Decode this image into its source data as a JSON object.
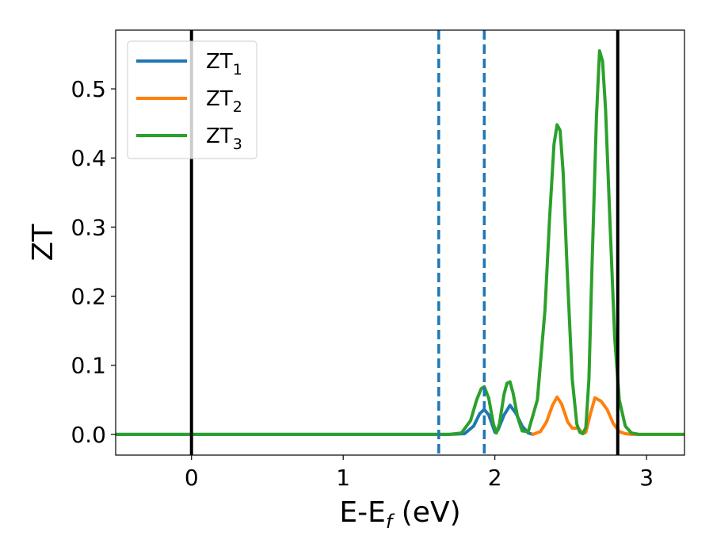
{
  "chart_data": {
    "type": "line",
    "xlabel": {
      "main": "E-E",
      "sub": "f",
      "tail": " (eV)"
    },
    "ylabel": "ZT",
    "xlim": [
      -0.5,
      3.25
    ],
    "ylim": [
      -0.03,
      0.585
    ],
    "x_ticks": [
      0,
      1,
      2,
      3
    ],
    "y_ticks": [
      0.0,
      0.1,
      0.2,
      0.3,
      0.4,
      0.5
    ],
    "x_tick_labels": [
      "0",
      "1",
      "2",
      "3"
    ],
    "y_tick_labels": [
      "0.0",
      "0.1",
      "0.2",
      "0.3",
      "0.4",
      "0.5"
    ],
    "grid": false,
    "legend_position": "top-left",
    "vertical_lines": [
      {
        "x": 0.0,
        "color": "#000000",
        "style": "solid"
      },
      {
        "x": 1.63,
        "color": "#1f77b4",
        "style": "dashed"
      },
      {
        "x": 1.93,
        "color": "#1f77b4",
        "style": "dashed"
      },
      {
        "x": 2.81,
        "color": "#000000",
        "style": "solid"
      }
    ],
    "series": [
      {
        "name": {
          "main": "ZT",
          "sub": "1"
        },
        "color": "#1f77b4",
        "x": [
          -0.5,
          1.7,
          1.8,
          1.86,
          1.9,
          1.93,
          1.96,
          2.0,
          2.02,
          2.06,
          2.1,
          2.14,
          2.18,
          2.22,
          2.25
        ],
        "y": [
          0,
          0,
          0.001,
          0.012,
          0.03,
          0.036,
          0.028,
          0.003,
          0.006,
          0.028,
          0.042,
          0.03,
          0.012,
          0.002,
          0
        ]
      },
      {
        "name": {
          "main": "ZT",
          "sub": "2"
        },
        "color": "#ff7f0e",
        "x": [
          2.25,
          2.3,
          2.34,
          2.38,
          2.41,
          2.44,
          2.48,
          2.51,
          2.55,
          2.58,
          2.6,
          2.63,
          2.66,
          2.7,
          2.74,
          2.78,
          2.82,
          2.86,
          2.9,
          3.25
        ],
        "y": [
          0,
          0.004,
          0.018,
          0.042,
          0.054,
          0.044,
          0.018,
          0.009,
          0.009,
          0.001,
          0.003,
          0.03,
          0.053,
          0.048,
          0.036,
          0.016,
          0.004,
          0.001,
          0,
          0
        ]
      },
      {
        "name": {
          "main": "ZT",
          "sub": "3"
        },
        "color": "#2ca02c",
        "x": [
          -0.5,
          1.7,
          1.78,
          1.84,
          1.88,
          1.91,
          1.93,
          1.96,
          1.99,
          2.01,
          2.03,
          2.06,
          2.08,
          2.1,
          2.12,
          2.15,
          2.18,
          2.22,
          2.28,
          2.33,
          2.36,
          2.39,
          2.41,
          2.43,
          2.45,
          2.48,
          2.51,
          2.54,
          2.56,
          2.58,
          2.6,
          2.62,
          2.64,
          2.67,
          2.69,
          2.71,
          2.73,
          2.76,
          2.79,
          2.82,
          2.86,
          2.9,
          2.95,
          3.25
        ],
        "y": [
          0,
          0,
          0.002,
          0.02,
          0.05,
          0.066,
          0.069,
          0.052,
          0.015,
          0.002,
          0.015,
          0.058,
          0.074,
          0.076,
          0.06,
          0.025,
          0.005,
          0.004,
          0.05,
          0.18,
          0.31,
          0.42,
          0.448,
          0.44,
          0.38,
          0.22,
          0.08,
          0.015,
          0.003,
          0.001,
          0.01,
          0.08,
          0.24,
          0.46,
          0.555,
          0.54,
          0.47,
          0.3,
          0.14,
          0.05,
          0.012,
          0.002,
          0,
          0
        ]
      }
    ]
  }
}
